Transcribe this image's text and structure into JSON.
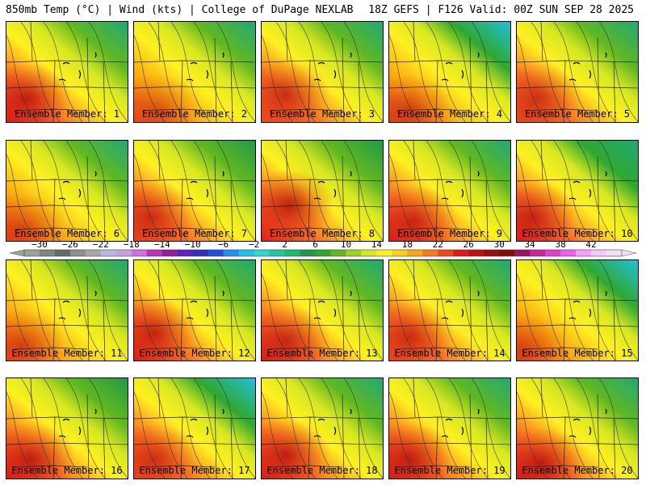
{
  "header": {
    "left": "850mb Temp (°C) | Wind (kts) | College of DuPage NEXLAB",
    "right": "18Z GEFS | F126 Valid: 00Z SUN SEP 28 2025"
  },
  "members": [
    {
      "label": "Ensemble Member: 1"
    },
    {
      "label": "Ensemble Member: 2"
    },
    {
      "label": "Ensemble Member: 3"
    },
    {
      "label": "Ensemble Member: 4"
    },
    {
      "label": "Ensemble Member: 5"
    },
    {
      "label": "Ensemble Member: 6"
    },
    {
      "label": "Ensemble Member: 7"
    },
    {
      "label": "Ensemble Member: 8"
    },
    {
      "label": "Ensemble Member: 9"
    },
    {
      "label": "Ensemble Member: 10"
    },
    {
      "label": "Ensemble Member: 11"
    },
    {
      "label": "Ensemble Member: 12"
    },
    {
      "label": "Ensemble Member: 13"
    },
    {
      "label": "Ensemble Member: 14"
    },
    {
      "label": "Ensemble Member: 15"
    },
    {
      "label": "Ensemble Member: 16"
    },
    {
      "label": "Ensemble Member: 17"
    },
    {
      "label": "Ensemble Member: 18"
    },
    {
      "label": "Ensemble Member: 19"
    },
    {
      "label": "Ensemble Member: 20"
    }
  ],
  "colorbar": {
    "ticks": [
      "−30",
      "−26",
      "−22",
      "−18",
      "−14",
      "−10",
      "−6",
      "−2",
      "2",
      "6",
      "10",
      "14",
      "18",
      "22",
      "26",
      "30",
      "34",
      "38",
      "42"
    ],
    "colors": [
      "#9aa39a",
      "#7f857f",
      "#676b67",
      "#8f8f8f",
      "#a8a8a8",
      "#b8b8e0",
      "#c8a0e0",
      "#d070e0",
      "#c030c0",
      "#9020a0",
      "#6020c0",
      "#3030c0",
      "#2050e0",
      "#2090f0",
      "#20c0f0",
      "#30d8d0",
      "#20c8a0",
      "#20b870",
      "#209848",
      "#30a830",
      "#60b820",
      "#a0d020",
      "#d8e820",
      "#fff020",
      "#f8d020",
      "#f8a810",
      "#f87820",
      "#f04818",
      "#e01818",
      "#c01010",
      "#9a1010",
      "#8a0808",
      "#a01060",
      "#d020a0",
      "#e040d0",
      "#f060f0",
      "#f8a0f8",
      "#f8c8f8",
      "#f0e0f0"
    ]
  }
}
